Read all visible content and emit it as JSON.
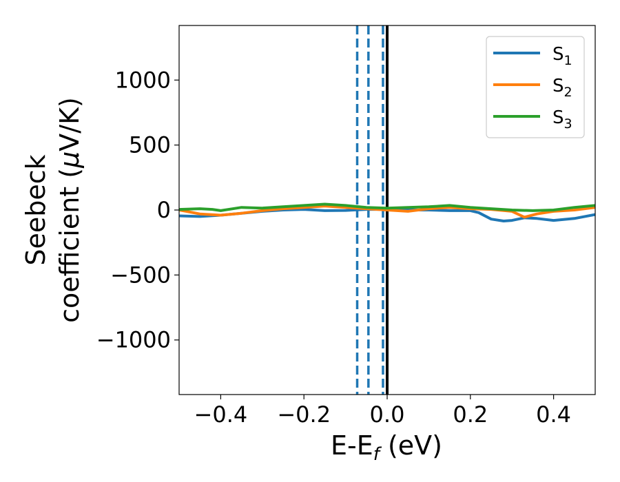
{
  "chart_data": {
    "type": "line",
    "xlabel": "E-E",
    "xlabel_sub": "f",
    "xlabel_unit": " (eV)",
    "ylabel_line1": "Seebeck",
    "ylabel_line2": "coefficient  (",
    "ylabel_mu": "μ",
    "ylabel_unit": "V/K)",
    "xlim": [
      -0.5,
      0.5
    ],
    "ylim": [
      -1420,
      1420
    ],
    "xticks": [
      -0.4,
      -0.2,
      0.0,
      0.2,
      0.4
    ],
    "xtick_labels": [
      "−0.4",
      "−0.2",
      "0.0",
      "0.2",
      "0.4"
    ],
    "yticks": [
      -1000,
      -500,
      0,
      500,
      1000
    ],
    "ytick_labels": [
      "−1000",
      "−500",
      "0",
      "500",
      "1000"
    ],
    "grid": false,
    "legend_position": "top-right",
    "vertical_lines": [
      {
        "x": -0.072,
        "style": "dashed",
        "color": "#1f77b4"
      },
      {
        "x": -0.045,
        "style": "dashed",
        "color": "#1f77b4"
      },
      {
        "x": -0.01,
        "style": "dashed",
        "color": "#1f77b4"
      },
      {
        "x": 0.0,
        "style": "solid",
        "color": "#000000"
      }
    ],
    "series": [
      {
        "name": "S",
        "subscript": "1",
        "color": "#1f77b4",
        "x": [
          -0.5,
          -0.45,
          -0.4,
          -0.35,
          -0.3,
          -0.25,
          -0.2,
          -0.15,
          -0.1,
          -0.05,
          0.0,
          0.05,
          0.1,
          0.15,
          0.2,
          0.22,
          0.25,
          0.28,
          0.3,
          0.33,
          0.36,
          0.4,
          0.45,
          0.5
        ],
        "y": [
          -45,
          -50,
          -40,
          -25,
          -10,
          0,
          5,
          -5,
          -3,
          5,
          5,
          0,
          0,
          -5,
          -5,
          -20,
          -70,
          -85,
          -80,
          -60,
          -65,
          -80,
          -65,
          -35
        ]
      },
      {
        "name": "S",
        "subscript": "2",
        "color": "#ff7f0e",
        "x": [
          -0.5,
          -0.45,
          -0.4,
          -0.35,
          -0.3,
          -0.25,
          -0.2,
          -0.15,
          -0.1,
          -0.05,
          0.0,
          0.05,
          0.1,
          0.15,
          0.2,
          0.25,
          0.3,
          0.33,
          0.36,
          0.4,
          0.45,
          0.5
        ],
        "y": [
          0,
          -30,
          -40,
          -25,
          -5,
          10,
          20,
          30,
          20,
          10,
          0,
          -10,
          10,
          20,
          10,
          5,
          -10,
          -55,
          -30,
          -10,
          0,
          20
        ]
      },
      {
        "name": "S",
        "subscript": "3",
        "color": "#2ca02c",
        "x": [
          -0.5,
          -0.45,
          -0.42,
          -0.4,
          -0.35,
          -0.3,
          -0.25,
          -0.2,
          -0.15,
          -0.1,
          -0.05,
          0.0,
          0.05,
          0.1,
          0.15,
          0.2,
          0.25,
          0.3,
          0.35,
          0.4,
          0.45,
          0.5
        ],
        "y": [
          5,
          10,
          5,
          -5,
          20,
          15,
          25,
          35,
          45,
          35,
          20,
          15,
          20,
          25,
          35,
          20,
          10,
          0,
          -5,
          0,
          20,
          35
        ]
      }
    ]
  }
}
